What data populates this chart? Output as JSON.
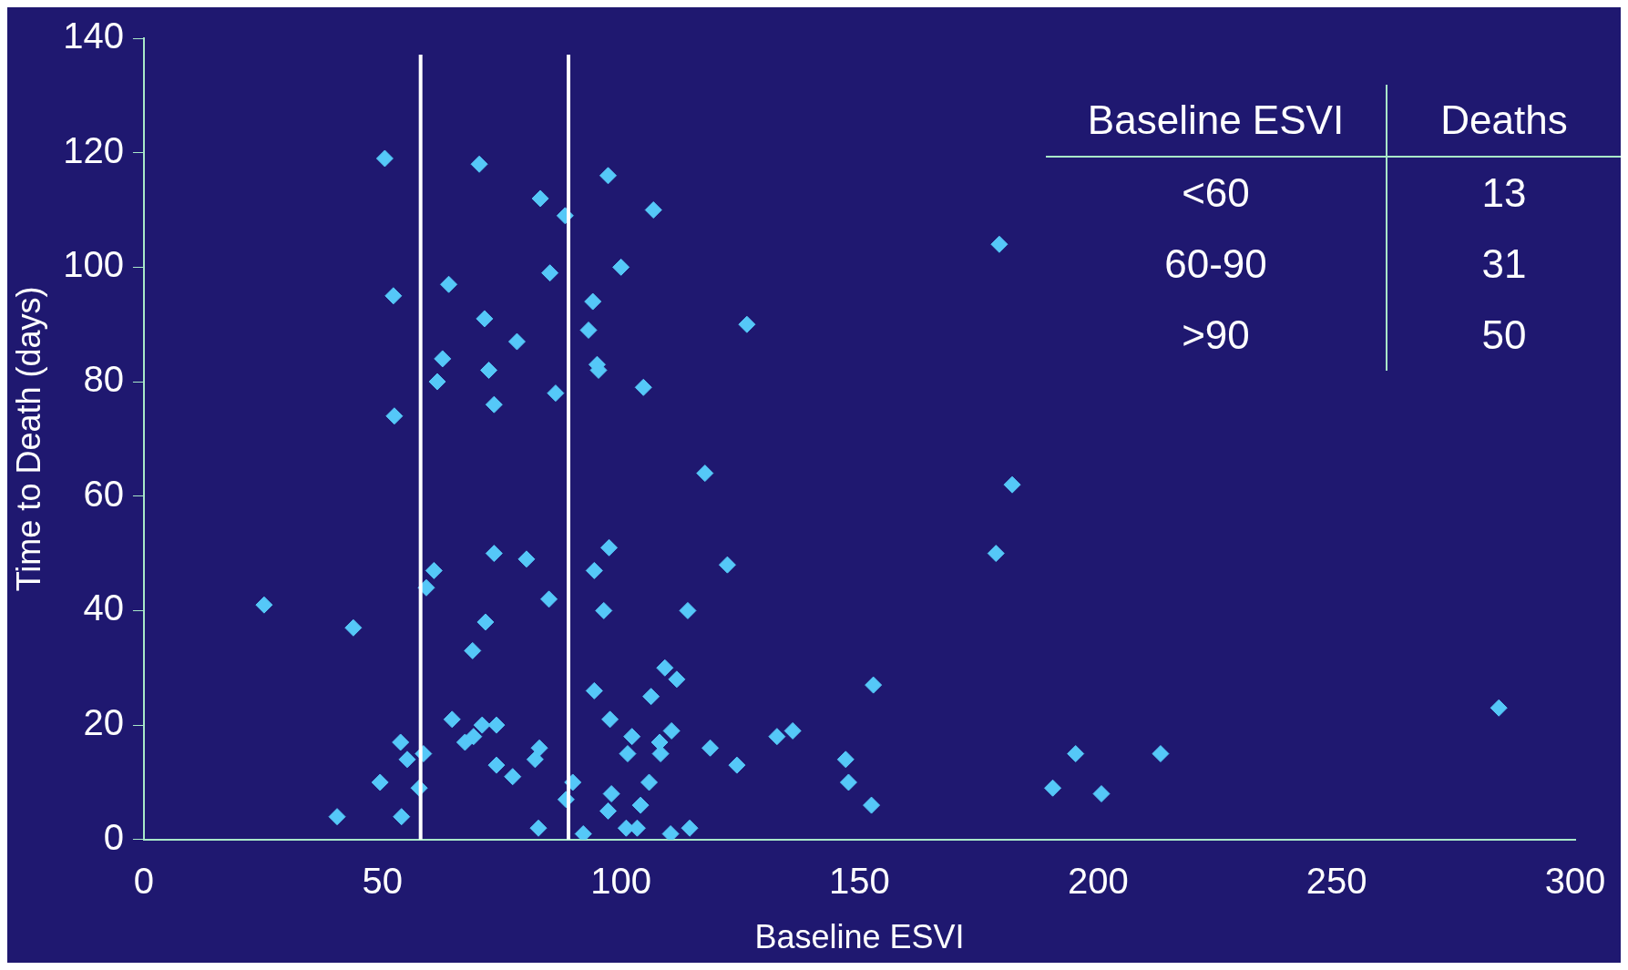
{
  "chart_data": {
    "type": "scatter",
    "xlabel": "Baseline ESVI",
    "ylabel": "Time to Death (days)",
    "x": [
      25.2,
      43.9,
      40.5,
      50.5,
      52.3,
      52.5,
      49.5,
      53.8,
      55.2,
      54,
      57.7,
      58.6,
      59.2,
      60.8,
      61.5,
      62.6,
      63.9,
      64.6,
      67.3,
      69.1,
      68.9,
      70.3,
      70.9,
      71.4,
      71.6,
      72.3,
      73.4,
      73.4,
      73.9,
      73.9,
      77.3,
      78.2,
      80.2,
      82,
      82.9,
      82.7,
      83.1,
      84.9,
      85.1,
      86.3,
      88.3,
      88.5,
      89.9,
      92.1,
      93.2,
      94.1,
      94.4,
      94.4,
      95,
      95.3,
      96.4,
      97.3,
      97.3,
      97.5,
      97.7,
      98,
      100,
      101.4,
      101.1,
      102.3,
      103.4,
      104.1,
      104.7,
      105.9,
      106.3,
      106.8,
      108.1,
      108.3,
      109.2,
      110.4,
      110.6,
      111.7,
      114,
      114.4,
      117.6,
      118.7,
      122.3,
      124.3,
      126.4,
      132.7,
      136,
      147.1,
      147.7,
      152.5,
      152.9,
      178.6,
      179.3,
      182,
      190.5,
      195.3,
      200.7,
      213.1,
      284
    ],
    "values": [
      41,
      37,
      4,
      119,
      95,
      74,
      10,
      17,
      14,
      4,
      9,
      15,
      44,
      47,
      80,
      84,
      97,
      21,
      17,
      18,
      33,
      118,
      20,
      91,
      38,
      82,
      50,
      76,
      13,
      20,
      11,
      87,
      49,
      14,
      16,
      2,
      112,
      42,
      99,
      78,
      109,
      7,
      10,
      1,
      89,
      94,
      26,
      47,
      83,
      82,
      40,
      116,
      5,
      51,
      21,
      8,
      100,
      15,
      2,
      18,
      2,
      6,
      79,
      10,
      25,
      110,
      17,
      15,
      30,
      1,
      19,
      28,
      40,
      2,
      64,
      16,
      48,
      13,
      90,
      18,
      19,
      14,
      10,
      6,
      27,
      50,
      104,
      62,
      9,
      15,
      8,
      15,
      23
    ],
    "color": "#55c8f8",
    "marker": "diamond",
    "xlim": [
      0,
      300
    ],
    "xticks": [
      0,
      50,
      100,
      150,
      200,
      250,
      300
    ],
    "ylim": [
      0,
      140
    ],
    "yticks": [
      0,
      20,
      40,
      60,
      80,
      100,
      120,
      140
    ],
    "grid": false,
    "legend": false,
    "ref_lines": [
      {
        "axis": "x",
        "value": 58,
        "color": "#ffffff"
      },
      {
        "axis": "x",
        "value": 89,
        "color": "#ffffff"
      }
    ],
    "annotations": [
      "Baseline ESVI",
      "Deaths",
      "<60",
      "13",
      "60-90",
      "31",
      ">90",
      "50"
    ]
  }
}
